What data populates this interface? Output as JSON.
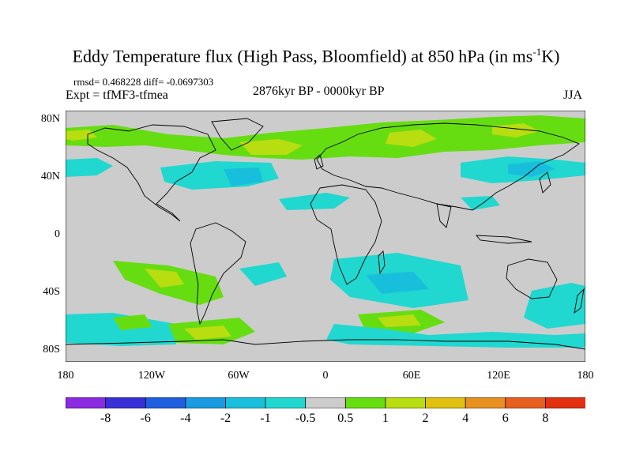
{
  "title_main": "Eddy Temperature flux (High Pass, Bloomfield) at 850 hPa (in ms",
  "title_sup": "-1",
  "title_end": "K)",
  "rmsd_text": "rmsd= 0.468228 diff= -0.0697303",
  "expt_text": "Expt = tfMF3-tfmea",
  "period_text": "2876kyr BP - 0000kyr BP",
  "season_text": "JJA",
  "lat_labels": [
    "80N",
    "40N",
    "0",
    "40S",
    "80S"
  ],
  "lon_labels": [
    "180",
    "120W",
    "60W",
    "0",
    "60E",
    "120E",
    "180"
  ],
  "colorbar": {
    "labels": [
      "-8",
      "-6",
      "-4",
      "-2",
      "-1",
      "-0.5",
      "0.5",
      "1",
      "2",
      "4",
      "6",
      "8"
    ],
    "colors": [
      "#8a2be2",
      "#3a2fd6",
      "#1e5fe0",
      "#1a9ae0",
      "#18bfdc",
      "#20d8d0",
      "#cccccc",
      "#66dd11",
      "#b8dd10",
      "#e0c010",
      "#e89020",
      "#e86020",
      "#e23010"
    ]
  },
  "map_colors": {
    "background": "#cccccc",
    "green": "#66dd11",
    "yellow": "#b8dd10",
    "orange": "#e0c010",
    "cyan": "#20d8d0",
    "lightblue": "#18bfdc",
    "blue": "#1a9ae0",
    "coast": "#000000"
  }
}
